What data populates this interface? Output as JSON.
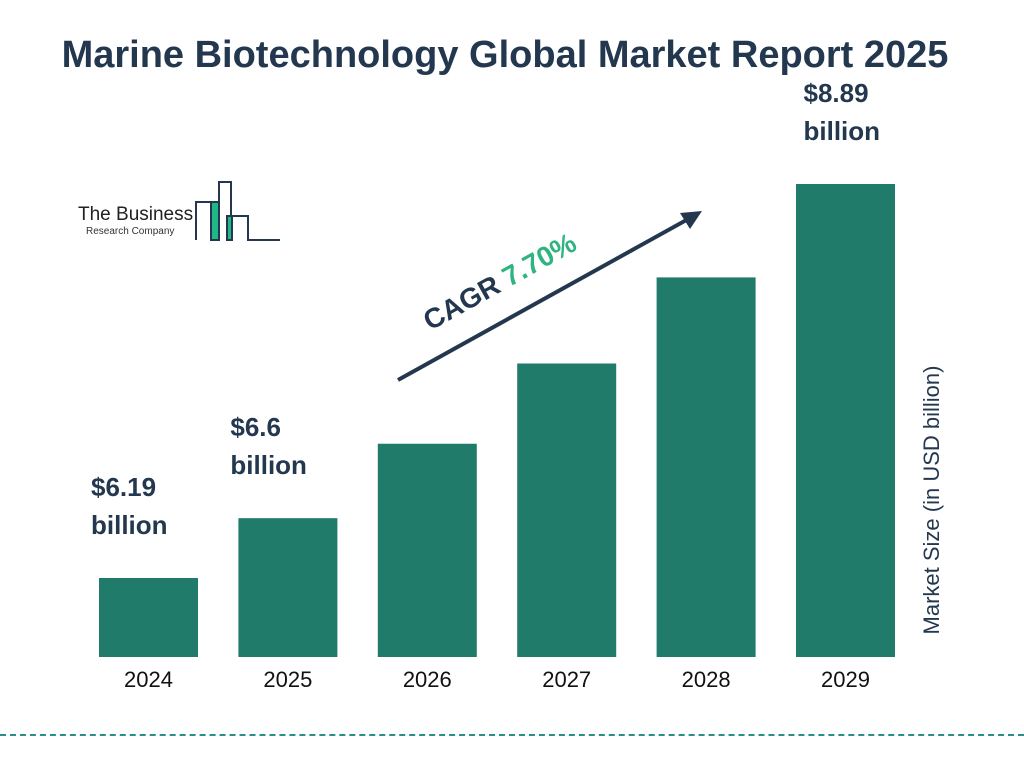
{
  "title": "Marine Biotechnology Global Market Report 2025",
  "logo": {
    "line1": "The Business",
    "line2": "Research Company"
  },
  "colors": {
    "bar": "#217b6b",
    "text": "#23384f",
    "cagr_value": "#2fb380",
    "logo_green": "#20b886",
    "dash": "#2a8f8a"
  },
  "cagr": {
    "label": "CAGR",
    "value": "7.70%"
  },
  "chart_data": {
    "type": "bar",
    "title": "Marine Biotechnology Global Market Report 2025",
    "categories": [
      "2024",
      "2025",
      "2026",
      "2027",
      "2028",
      "2029"
    ],
    "values": [
      6.19,
      6.6,
      7.11,
      7.66,
      8.25,
      8.89
    ],
    "value_labels": [
      [
        "$6.19",
        "billion"
      ],
      [
        "$6.6",
        "billion"
      ],
      null,
      null,
      null,
      [
        "$8.89",
        "billion"
      ]
    ],
    "xlabel": "",
    "ylabel": "Market Size (in USD billion)",
    "grid": false,
    "annotation": "CAGR 7.70%"
  }
}
